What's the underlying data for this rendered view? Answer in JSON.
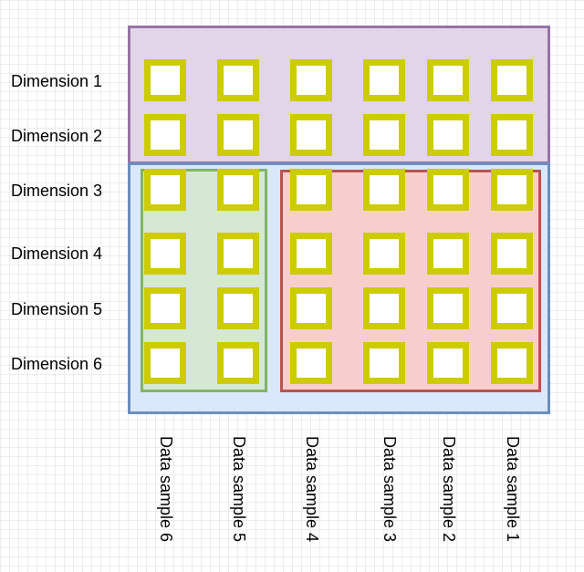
{
  "diagram": {
    "row_labels": [
      "Dimension 1",
      "Dimension 2",
      "Dimension 3",
      "Dimension 4",
      "Dimension 5",
      "Dimension 6"
    ],
    "column_labels": [
      "Data sample 6",
      "Data sample 5",
      "Data sample 4",
      "Data sample 3",
      "Data sample 2",
      "Data sample 1"
    ],
    "colors": {
      "top_region_fill": "#e1d5e7",
      "top_region_border": "#9673a6",
      "bottom_region_fill": "#dae8fc",
      "bottom_region_border": "#6c8ebf",
      "green_region_fill": "#d5e8d4",
      "green_region_border": "#82b366",
      "red_region_fill": "#f8cecc",
      "red_region_border": "#b85450",
      "cell_border": "#cccc00"
    }
  }
}
